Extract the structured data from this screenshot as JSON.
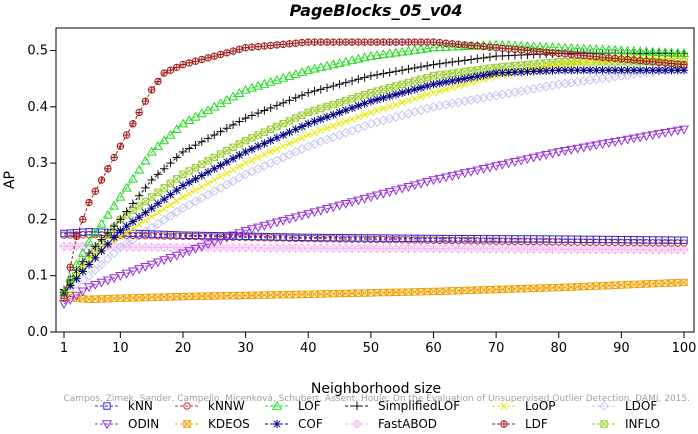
{
  "chart_data": {
    "type": "line",
    "title": "PageBlocks_05_v04",
    "xlabel": "Neighborhood size",
    "ylabel": "AP",
    "xlim": [
      1,
      100
    ],
    "ylim": [
      0,
      0.54
    ],
    "xticks": [
      1,
      10,
      20,
      30,
      40,
      50,
      60,
      70,
      80,
      90,
      100
    ],
    "yticks": [
      0.0,
      0.1,
      0.2,
      0.3,
      0.4,
      0.5
    ],
    "ytick_labels": [
      "0.0",
      "0.1",
      "0.2",
      "0.3",
      "0.4",
      "0.5"
    ],
    "grid": false,
    "legend_position": "bottom",
    "credit": "Campos, Zimek, Sander, Campello, Micenková, Schubert, Assent, Houle: On the Evaluation of Unsupervised Outlier Detection. DAMI, 2015.",
    "series": [
      {
        "name": "kNN",
        "color": "#2a2ad4",
        "marker": "square",
        "x": [
          1,
          5,
          10,
          20,
          40,
          60,
          80,
          100
        ],
        "y": [
          0.175,
          0.178,
          0.176,
          0.172,
          0.168,
          0.166,
          0.165,
          0.163
        ]
      },
      {
        "name": "kNNW",
        "color": "#d43030",
        "marker": "circle",
        "x": [
          1,
          5,
          10,
          20,
          40,
          60,
          80,
          100
        ],
        "y": [
          0.172,
          0.173,
          0.172,
          0.17,
          0.166,
          0.163,
          0.16,
          0.158
        ]
      },
      {
        "name": "LOF",
        "color": "#22dd22",
        "marker": "triangle-up",
        "x": [
          1,
          3,
          5,
          10,
          15,
          20,
          30,
          40,
          50,
          60,
          70,
          80,
          90,
          100
        ],
        "y": [
          0.07,
          0.12,
          0.16,
          0.24,
          0.32,
          0.37,
          0.43,
          0.465,
          0.49,
          0.505,
          0.51,
          0.505,
          0.5,
          0.495
        ]
      },
      {
        "name": "SimplifiedLOF",
        "color": "#111111",
        "marker": "plus",
        "x": [
          1,
          3,
          5,
          10,
          15,
          20,
          30,
          40,
          50,
          60,
          70,
          80,
          90,
          100
        ],
        "y": [
          0.075,
          0.11,
          0.14,
          0.2,
          0.27,
          0.32,
          0.38,
          0.425,
          0.455,
          0.475,
          0.49,
          0.495,
          0.495,
          0.495
        ]
      },
      {
        "name": "LoOP",
        "color": "#e8e800",
        "marker": "x",
        "x": [
          1,
          5,
          10,
          20,
          30,
          40,
          50,
          60,
          70,
          80,
          90,
          100
        ],
        "y": [
          0.07,
          0.13,
          0.17,
          0.24,
          0.3,
          0.35,
          0.39,
          0.425,
          0.455,
          0.475,
          0.485,
          0.49
        ]
      },
      {
        "name": "LDOF",
        "color": "#c6c6f0",
        "marker": "diamond",
        "x": [
          1,
          5,
          10,
          20,
          30,
          40,
          50,
          60,
          70,
          80,
          90,
          100
        ],
        "y": [
          0.07,
          0.1,
          0.15,
          0.22,
          0.28,
          0.33,
          0.37,
          0.4,
          0.42,
          0.44,
          0.455,
          0.47
        ]
      },
      {
        "name": "ODIN",
        "color": "#9a30d8",
        "marker": "triangle-down",
        "x": [
          1,
          5,
          10,
          20,
          30,
          40,
          50,
          60,
          70,
          80,
          90,
          100
        ],
        "y": [
          0.05,
          0.08,
          0.1,
          0.14,
          0.18,
          0.21,
          0.24,
          0.27,
          0.295,
          0.32,
          0.34,
          0.36
        ]
      },
      {
        "name": "KDEOS",
        "color": "#f0a000",
        "marker": "square-x",
        "x": [
          1,
          3,
          5,
          10,
          20,
          40,
          60,
          80,
          100
        ],
        "y": [
          0.07,
          0.06,
          0.058,
          0.06,
          0.063,
          0.067,
          0.072,
          0.079,
          0.088
        ]
      },
      {
        "name": "COF",
        "color": "#000080",
        "marker": "asterisk",
        "x": [
          1,
          5,
          10,
          20,
          30,
          40,
          50,
          60,
          70,
          80,
          90,
          100
        ],
        "y": [
          0.07,
          0.12,
          0.18,
          0.26,
          0.32,
          0.37,
          0.41,
          0.44,
          0.46,
          0.465,
          0.465,
          0.465
        ]
      },
      {
        "name": "FastABOD",
        "color": "#f4b8f4",
        "marker": "diamond-plus",
        "x": [
          1,
          5,
          10,
          20,
          40,
          60,
          80,
          100
        ],
        "y": [
          0.152,
          0.152,
          0.151,
          0.15,
          0.149,
          0.148,
          0.147,
          0.146
        ]
      },
      {
        "name": "LDF",
        "color": "#a01e1e",
        "marker": "circle-plus",
        "x": [
          1,
          3,
          5,
          8,
          10,
          13,
          15,
          17,
          20,
          25,
          30,
          40,
          50,
          60,
          70,
          80,
          90,
          100
        ],
        "y": [
          0.06,
          0.17,
          0.23,
          0.29,
          0.33,
          0.39,
          0.43,
          0.46,
          0.475,
          0.49,
          0.505,
          0.515,
          0.515,
          0.515,
          0.505,
          0.495,
          0.485,
          0.475
        ]
      },
      {
        "name": "INFLO",
        "color": "#9acd32",
        "marker": "hourglass",
        "x": [
          1,
          5,
          10,
          20,
          30,
          40,
          50,
          60,
          70,
          80,
          90,
          100
        ],
        "y": [
          0.07,
          0.13,
          0.2,
          0.28,
          0.34,
          0.39,
          0.425,
          0.455,
          0.47,
          0.48,
          0.48,
          0.48
        ]
      }
    ]
  }
}
